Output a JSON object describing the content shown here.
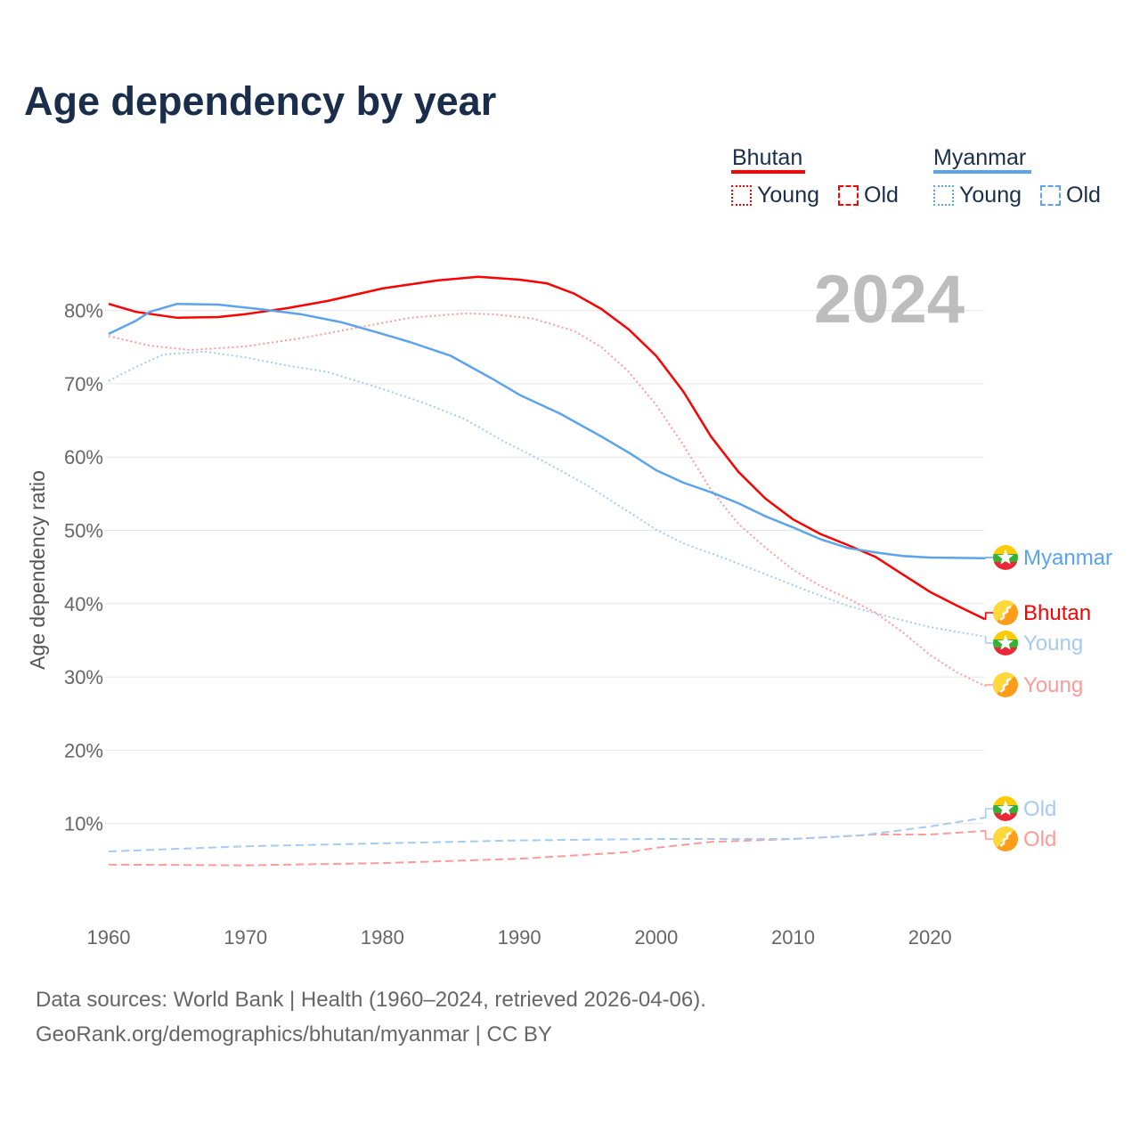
{
  "title": "Age dependency by year",
  "legend": {
    "countries": [
      {
        "name": "Bhutan",
        "color": "#ff0000",
        "young": "Young",
        "old": "Old"
      },
      {
        "name": "Myanmar",
        "color": "#5ba3ec",
        "young": "Young",
        "old": "Old"
      }
    ]
  },
  "footer": {
    "line1": "Data sources: World Bank | Health (1960–2024, retrieved 2026-04-06).",
    "line2": "GeoRank.org/demographics/bhutan/myanmar | CC BY"
  },
  "chart_data": {
    "type": "line",
    "title": "Age dependency by year",
    "year_label": "2024",
    "ylabel": "Age dependency ratio",
    "xlabel": "",
    "xlim": [
      1960,
      2024
    ],
    "ylim": [
      0,
      85
    ],
    "x_ticks": [
      "1960",
      "1970",
      "1980",
      "1990",
      "2000",
      "2010",
      "2020"
    ],
    "y_ticks": [
      "10%",
      "20%",
      "30%",
      "40%",
      "50%",
      "60%",
      "70%",
      "80%"
    ],
    "grid": true,
    "series": [
      {
        "name": "Bhutan",
        "end_label": "Bhutan",
        "country": "Bhutan",
        "kind": "total",
        "color": "#ff0000",
        "style": "solid",
        "x": [
          1960,
          1962,
          1965,
          1968,
          1970,
          1973,
          1976,
          1980,
          1984,
          1987,
          1990,
          1992,
          1994,
          1996,
          1998,
          2000,
          2002,
          2004,
          2006,
          2008,
          2010,
          2012,
          2014,
          2016,
          2018,
          2020,
          2022,
          2024
        ],
        "y": [
          80.9,
          79.8,
          79.0,
          79.1,
          79.5,
          80.3,
          81.3,
          83.0,
          84.1,
          84.6,
          84.2,
          83.7,
          82.3,
          80.2,
          77.4,
          73.8,
          68.9,
          62.8,
          58.0,
          54.3,
          51.5,
          49.5,
          48.0,
          46.4,
          44.0,
          41.6,
          39.7,
          37.9
        ]
      },
      {
        "name": "Bhutan Young",
        "end_label": "Young",
        "country": "Bhutan",
        "kind": "young",
        "color": "#ff9a9a",
        "style": "dotted",
        "x": [
          1960,
          1963,
          1966,
          1970,
          1974,
          1978,
          1982,
          1986,
          1988,
          1991,
          1994,
          1996,
          1998,
          2000,
          2002,
          2004,
          2006,
          2008,
          2010,
          2012,
          2014,
          2016,
          2018,
          2020,
          2022,
          2024
        ],
        "y": [
          76.5,
          75.2,
          74.6,
          75.1,
          76.2,
          77.6,
          79.0,
          79.6,
          79.5,
          78.9,
          77.2,
          75.0,
          71.6,
          67.1,
          61.6,
          55.5,
          50.9,
          47.6,
          44.6,
          42.4,
          40.7,
          38.8,
          36.1,
          33.0,
          30.6,
          28.8
        ]
      },
      {
        "name": "Bhutan Old",
        "end_label": "Old",
        "country": "Bhutan",
        "kind": "old",
        "color": "#ff9a9a",
        "style": "dashed",
        "x": [
          1960,
          1970,
          1980,
          1990,
          1998,
          2000,
          2004,
          2010,
          2016,
          2020,
          2024
        ],
        "y": [
          4.4,
          4.3,
          4.6,
          5.2,
          6.1,
          6.7,
          7.5,
          7.9,
          8.5,
          8.5,
          9.0
        ]
      },
      {
        "name": "Myanmar",
        "end_label": "Myanmar",
        "country": "Myanmar",
        "kind": "total",
        "color": "#5ba3ec",
        "style": "solid",
        "x": [
          1960,
          1962,
          1963,
          1965,
          1968,
          1971,
          1974,
          1977,
          1980,
          1982,
          1985,
          1988,
          1990,
          1993,
          1996,
          1998,
          2000,
          2002,
          2004,
          2006,
          2008,
          2010,
          2012,
          2014,
          2016,
          2018,
          2020,
          2024
        ],
        "y": [
          76.8,
          78.6,
          79.8,
          80.9,
          80.8,
          80.2,
          79.5,
          78.4,
          76.8,
          75.7,
          73.8,
          70.7,
          68.5,
          65.9,
          62.8,
          60.6,
          58.2,
          56.5,
          55.2,
          53.7,
          51.9,
          50.4,
          48.8,
          47.6,
          47.0,
          46.5,
          46.3,
          46.2
        ]
      },
      {
        "name": "Myanmar Young",
        "end_label": "Young",
        "country": "Myanmar",
        "kind": "young",
        "color": "#a6cbf2",
        "style": "dotted",
        "x": [
          1960,
          1962,
          1964,
          1967,
          1970,
          1973,
          1976,
          1980,
          1983,
          1986,
          1989,
          1992,
          1995,
          1998,
          2000,
          2002,
          2005,
          2008,
          2011,
          2014,
          2017,
          2020,
          2024
        ],
        "y": [
          70.4,
          72.3,
          74.0,
          74.4,
          73.6,
          72.5,
          71.6,
          69.3,
          67.4,
          65.2,
          62.0,
          59.2,
          56.1,
          52.5,
          50.1,
          48.2,
          46.2,
          44.0,
          41.8,
          39.7,
          38.2,
          36.8,
          35.5
        ]
      },
      {
        "name": "Myanmar Old",
        "end_label": "Old",
        "country": "Myanmar",
        "kind": "old",
        "color": "#a6cbf2",
        "style": "dashed",
        "x": [
          1960,
          1970,
          1980,
          1990,
          2000,
          2010,
          2015,
          2020,
          2024
        ],
        "y": [
          6.2,
          6.9,
          7.3,
          7.7,
          7.9,
          7.9,
          8.4,
          9.6,
          10.8
        ]
      }
    ]
  }
}
